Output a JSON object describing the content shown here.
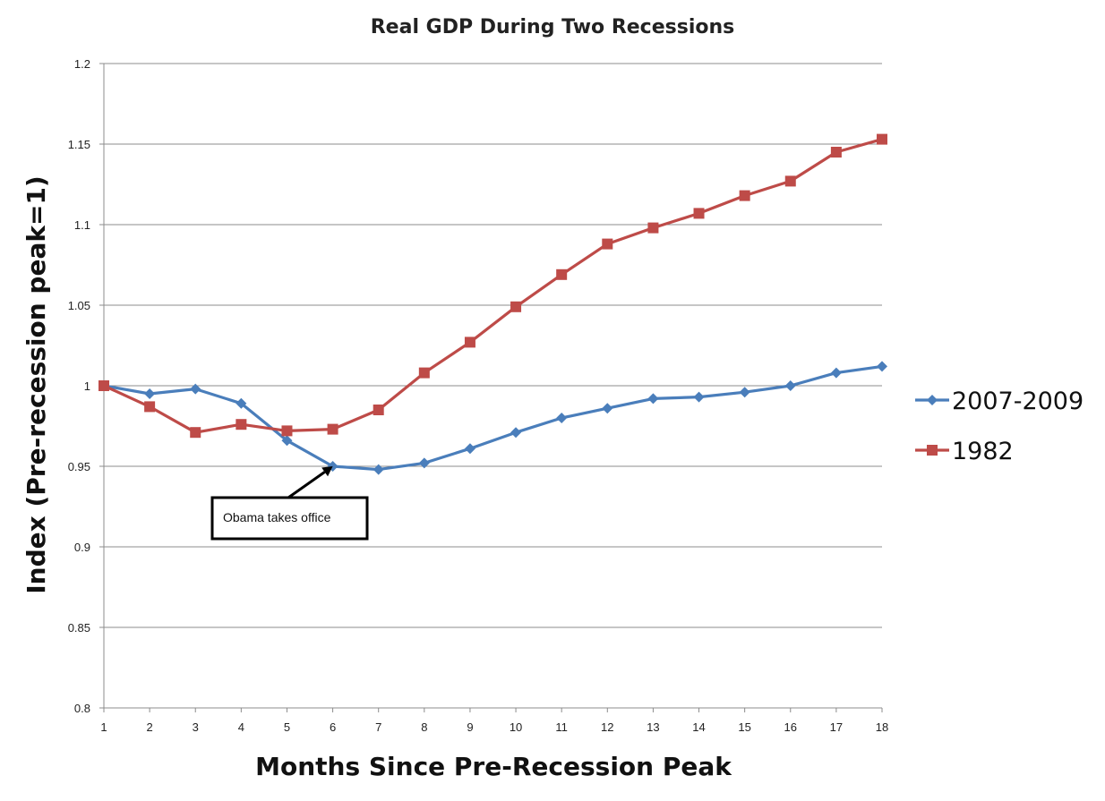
{
  "chart_data": {
    "type": "line",
    "title": "Real GDP During Two Recessions",
    "xlabel": "Months Since Pre-Recession Peak",
    "ylabel": "Index (Pre-recession peak=1)",
    "x": [
      1,
      2,
      3,
      4,
      5,
      6,
      7,
      8,
      9,
      10,
      11,
      12,
      13,
      14,
      15,
      16,
      17,
      18
    ],
    "x_tick_labels": [
      "1",
      "2",
      "3",
      "4",
      "5",
      "6",
      "7",
      "8",
      "9",
      "10",
      "11",
      "12",
      "13",
      "14",
      "15",
      "16",
      "17",
      "18"
    ],
    "ylim": [
      0.8,
      1.2
    ],
    "y_tick_labels": [
      "0.8",
      "0.85",
      "0.9",
      "0.95",
      "1",
      "1.05",
      "1.1",
      "1.15",
      "1.2"
    ],
    "y_ticks": [
      0.8,
      0.85,
      0.9,
      0.95,
      1.0,
      1.05,
      1.1,
      1.15,
      1.2
    ],
    "grid": true,
    "legend_position": "right",
    "series": [
      {
        "name": "2007-2009",
        "color": "#4a7ebb",
        "marker": "diamond",
        "values": [
          1.0,
          0.995,
          0.998,
          0.989,
          0.966,
          0.95,
          0.948,
          0.952,
          0.961,
          0.971,
          0.98,
          0.986,
          0.992,
          0.993,
          0.996,
          1.0,
          1.008,
          1.012
        ]
      },
      {
        "name": "1982",
        "color": "#be4b48",
        "marker": "square",
        "values": [
          1.0,
          0.987,
          0.971,
          0.976,
          0.972,
          0.973,
          0.985,
          1.008,
          1.027,
          1.049,
          1.069,
          1.088,
          1.098,
          1.107,
          1.118,
          1.127,
          1.145,
          1.153
        ]
      }
    ],
    "annotations": [
      {
        "text": "Obama takes office",
        "points_to": {
          "x": 6,
          "y": 0.95
        }
      }
    ]
  }
}
